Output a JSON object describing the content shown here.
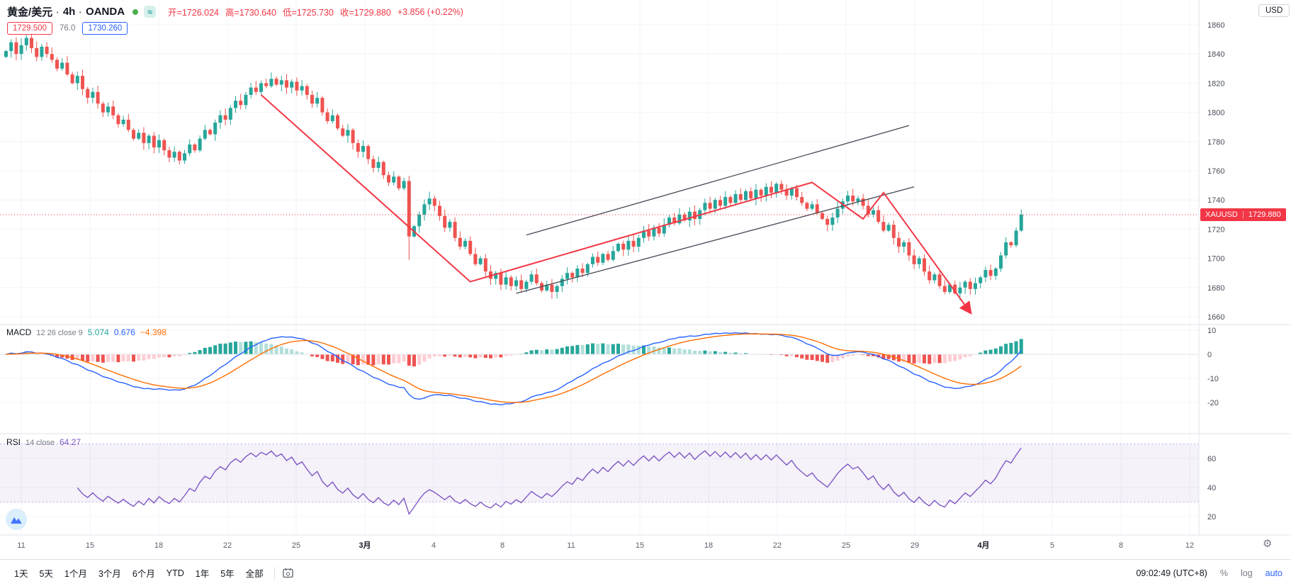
{
  "header": {
    "symbol": "黄金/美元",
    "sep": "·",
    "interval": "4h",
    "exchange": "OANDA",
    "realtime_badge": "≈",
    "ohlc": {
      "open_label": "开=",
      "open_value": "1726.024",
      "high_label": "高=",
      "high_value": "1730.640",
      "low_label": "低=",
      "low_value": "1725.730",
      "close_label": "收=",
      "close_value": "1729.880",
      "change_value": "+3.856 (+0.22%)"
    },
    "tags": {
      "sell_price": "1729.500",
      "spread": "76.0",
      "buy_price": "1730.260"
    },
    "currency_button": "USD"
  },
  "price_axis": {
    "symbol_label": "XAUUSD",
    "current_price": "1729.880"
  },
  "macd_panel": {
    "title": "MACD",
    "params": "12 26 close 9",
    "hist_value": "5.074",
    "macd_value": "0.676",
    "signal_value": "−4.398"
  },
  "rsi_panel": {
    "title": "RSI",
    "params": "14 close",
    "value": "64.27"
  },
  "time_axis": [
    "11",
    "15",
    "18",
    "22",
    "25",
    "3月",
    "4",
    "8",
    "11",
    "15",
    "18",
    "22",
    "25",
    "29",
    "4月",
    "5",
    "8",
    "12"
  ],
  "toolbar": {
    "ranges": [
      "1天",
      "5天",
      "1个月",
      "3个月",
      "6个月",
      "YTD",
      "1年",
      "5年",
      "全部"
    ],
    "clock": "09:02:49 (UTC+8)",
    "percent": "%",
    "log": "log",
    "auto": "auto"
  },
  "icons": {
    "gear": "⚙"
  },
  "chart_data": {
    "type": "candlestick",
    "symbol": "XAUUSD",
    "interval": "4h",
    "ylim": [
      1655,
      1865
    ],
    "price_axis_ticks": [
      1860,
      1840,
      1820,
      1800,
      1780,
      1760,
      1740,
      1720,
      1700,
      1680,
      1660
    ],
    "macd_axis_ticks": [
      10,
      0,
      -10,
      -20
    ],
    "rsi_axis_ticks": [
      60,
      40,
      20
    ],
    "rsi_band": [
      30,
      70
    ],
    "current_price": 1729.88,
    "open_first": 1838,
    "long_lower_wick_index": 79,
    "closes": [
      1842,
      1848,
      1840,
      1846,
      1851,
      1844,
      1838,
      1845,
      1840,
      1836,
      1830,
      1834,
      1826,
      1820,
      1825,
      1816,
      1810,
      1814,
      1806,
      1800,
      1804,
      1798,
      1792,
      1795,
      1788,
      1782,
      1786,
      1779,
      1784,
      1776,
      1781,
      1774,
      1769,
      1773,
      1767,
      1772,
      1778,
      1774,
      1782,
      1788,
      1785,
      1793,
      1798,
      1795,
      1803,
      1808,
      1805,
      1812,
      1817,
      1814,
      1820,
      1818,
      1823,
      1819,
      1822,
      1817,
      1821,
      1815,
      1818,
      1812,
      1806,
      1810,
      1800,
      1794,
      1798,
      1789,
      1784,
      1788,
      1779,
      1773,
      1777,
      1768,
      1762,
      1766,
      1757,
      1752,
      1756,
      1748,
      1753,
      1715,
      1722,
      1730,
      1737,
      1741,
      1736,
      1729,
      1721,
      1725,
      1714,
      1708,
      1712,
      1703,
      1696,
      1700,
      1691,
      1686,
      1690,
      1682,
      1687,
      1681,
      1685,
      1679,
      1684,
      1689,
      1683,
      1678,
      1682,
      1677,
      1681,
      1686,
      1690,
      1687,
      1693,
      1690,
      1696,
      1701,
      1697,
      1703,
      1699,
      1705,
      1710,
      1706,
      1712,
      1708,
      1714,
      1719,
      1715,
      1721,
      1717,
      1723,
      1728,
      1724,
      1730,
      1726,
      1732,
      1727,
      1733,
      1738,
      1734,
      1740,
      1736,
      1742,
      1738,
      1744,
      1740,
      1746,
      1741,
      1747,
      1743,
      1749,
      1745,
      1751,
      1747,
      1743,
      1748,
      1742,
      1738,
      1734,
      1737,
      1731,
      1727,
      1723,
      1728,
      1734,
      1739,
      1743,
      1739,
      1741,
      1736,
      1730,
      1733,
      1725,
      1719,
      1723,
      1714,
      1708,
      1711,
      1702,
      1696,
      1700,
      1691,
      1685,
      1689,
      1681,
      1677,
      1682,
      1676,
      1680,
      1684,
      1679,
      1683,
      1687,
      1692,
      1688,
      1693,
      1702,
      1711,
      1709,
      1719,
      1730
    ],
    "indicators": {
      "macd_fast": 12,
      "macd_slow": 26,
      "macd_signal": 9,
      "rsi_length": 14
    },
    "drawings": {
      "channel_lines": [
        [
          [
            102,
            1716
          ],
          [
            177,
            1791
          ]
        ],
        [
          [
            100,
            1676
          ],
          [
            178,
            1749
          ]
        ]
      ],
      "red_trend": [
        [
          50,
          1812
        ],
        [
          91,
          1684
        ],
        [
          158,
          1752
        ],
        [
          168,
          1727
        ],
        [
          172,
          1745
        ],
        [
          189,
          1663
        ]
      ]
    },
    "colors": {
      "up": "#26a69a",
      "down": "#ef5350",
      "macd_line": "#2962ff",
      "signal_line": "#ff6d00",
      "hist_above_grow": "#26a69a",
      "hist_above_fall": "#b2dfdb",
      "hist_below_grow": "#ffcdd2",
      "hist_below_fall": "#ef5350",
      "rsi_line": "#7e57c2",
      "rsi_band_fill": "rgba(126,87,194,0.08)",
      "trend": "#f23645",
      "channel": "#454a56",
      "current_price_line": "#f23645"
    }
  }
}
